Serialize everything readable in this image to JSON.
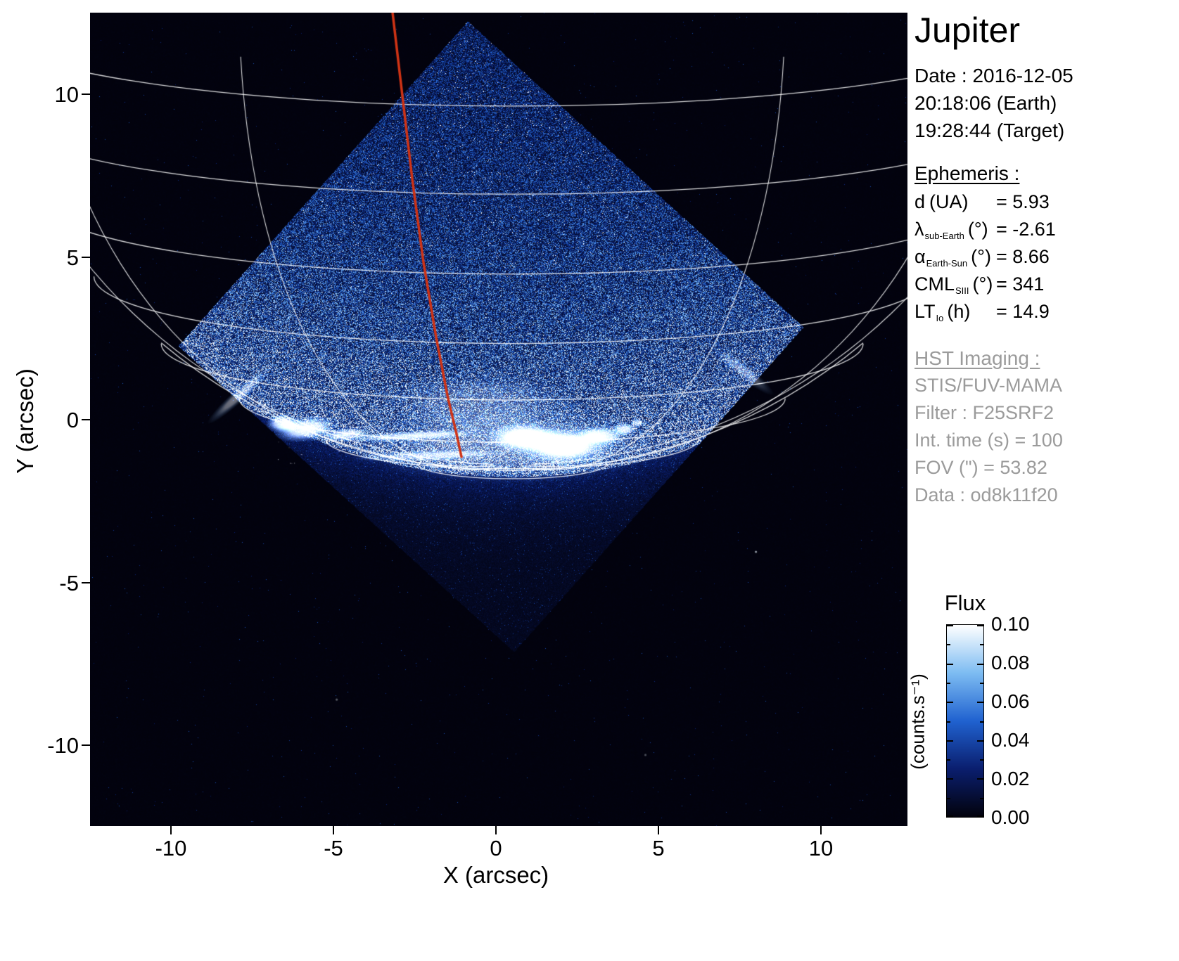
{
  "title": "Jupiter",
  "info_panel": {
    "date": "Date : 2016-12-05",
    "time_earth": "20:18:06 (Earth)",
    "time_target": "19:28:44 (Target)",
    "ephemeris_heading": "Ephemeris :",
    "ephemeris_rows": [
      {
        "sym": "d",
        "sub": "",
        "unit": "(UA)",
        "value": "= 5.93"
      },
      {
        "sym": "λ",
        "sub": "sub-Earth",
        "unit": "(°)",
        "value": "= -2.61"
      },
      {
        "sym": "α",
        "sub": "Earth-Sun",
        "unit": "(°)",
        "value": "= 8.66"
      },
      {
        "sym": "CML",
        "sub": "SIII",
        "unit": "(°)",
        "value": "= 341"
      },
      {
        "sym": "LT",
        "sub": "Io",
        "unit": "(h)",
        "value": "= 14.9"
      }
    ],
    "hst_heading": "HST Imaging :",
    "hst_rows": [
      "STIS/FUV-MAMA",
      "Filter : F25SRF2",
      "Int. time (s) = 100",
      "FOV (\") = 53.82",
      "Data : od8k11f20"
    ]
  },
  "colorbar": {
    "title": "Flux",
    "unit": "(counts.s⁻¹)",
    "tick_labels": [
      "0.10",
      "0.08",
      "0.06",
      "0.04",
      "0.02",
      "0.00"
    ]
  },
  "chart_data": {
    "type": "heatmap",
    "title": "Jupiter",
    "xlabel": "X (arcsec)",
    "ylabel": "Y (arcsec)",
    "xlim": [
      -12.5,
      12.7
    ],
    "ylim": [
      -12.6,
      12.5
    ],
    "xticks": [
      -10,
      -5,
      0,
      5,
      10
    ],
    "yticks": [
      10,
      5,
      0,
      -5,
      -10
    ],
    "xtick_labels": [
      "-10",
      "-5",
      "0",
      "5",
      "10"
    ],
    "ytick_labels": [
      "10",
      "5",
      "0",
      "-5",
      "-10"
    ],
    "flux_range": [
      0.0,
      0.1
    ],
    "flux_ticks": [
      0.0,
      0.02,
      0.04,
      0.06,
      0.08,
      0.1
    ],
    "observation": {
      "target": "Jupiter",
      "date": "2016-12-05",
      "time_earth": "20:18:06",
      "time_target": "19:28:44",
      "d_UA": 5.93,
      "lambda_subEarth_deg": -2.61,
      "alpha_EarthSun_deg": 8.66,
      "CML_SIII_deg": 341,
      "LT_Io_h": 14.9,
      "instrument": "STIS/FUV-MAMA",
      "filter": "F25SRF2",
      "int_time_s": 100,
      "FOV_arcsec": 53.82,
      "dataset": "od8k11f20"
    },
    "detector_diamond": [
      [
        -0.87,
        12.25
      ],
      [
        9.46,
        2.85
      ],
      [
        0.55,
        -7.13
      ],
      [
        -9.78,
        2.27
      ]
    ],
    "planet": {
      "cx": 0.5,
      "cy": 15.2,
      "radius": 16.8,
      "tilt": 0.16
    },
    "graticule_lat_deg": [
      -80,
      -70,
      -60,
      -50,
      -40,
      -30,
      -20,
      -10
    ],
    "graticule_lon_deg": [
      -90,
      -60,
      -30,
      30,
      60,
      90
    ],
    "aurora_blobs": [
      [
        -6.55,
        -0.12,
        0.55,
        0.3,
        0.95,
        0
      ],
      [
        -5.85,
        -0.28,
        1.0,
        0.4,
        1.0,
        -8
      ],
      [
        -4.6,
        -0.45,
        0.85,
        0.22,
        0.8,
        -5
      ],
      [
        -2.6,
        -0.5,
        2.3,
        0.16,
        0.75,
        -3
      ],
      [
        -2.0,
        -1.1,
        2.5,
        0.17,
        0.6,
        -2
      ],
      [
        0.9,
        -0.55,
        1.25,
        0.5,
        1.0,
        0
      ],
      [
        2.1,
        -0.8,
        1.55,
        0.62,
        1.0,
        0
      ],
      [
        3.2,
        -0.5,
        0.8,
        0.35,
        0.9,
        0
      ],
      [
        3.95,
        -0.3,
        0.4,
        0.22,
        0.85,
        0
      ],
      [
        4.35,
        -0.1,
        0.22,
        0.15,
        0.7,
        0
      ],
      [
        -7.9,
        0.75,
        1.3,
        0.2,
        0.5,
        -42
      ],
      [
        7.6,
        1.5,
        1.2,
        0.22,
        0.4,
        38
      ],
      [
        0.3,
        -0.75,
        4.8,
        1.25,
        0.3,
        0
      ],
      [
        -0.5,
        0.5,
        3.2,
        1.0,
        0.22,
        0
      ]
    ],
    "footprint_path": [
      [
        -3.18,
        12.5
      ],
      [
        -2.9,
        10.13
      ],
      [
        -2.58,
        7.43
      ],
      [
        -2.23,
        4.84
      ],
      [
        -1.84,
        2.53
      ],
      [
        -1.49,
        0.73
      ],
      [
        -1.21,
        -0.45
      ],
      [
        -1.06,
        -1.14
      ]
    ],
    "faint_points": [
      [
        8.0,
        -4.06,
        0.6
      ],
      [
        -4.9,
        -8.6,
        0.35
      ],
      [
        4.6,
        -10.3,
        0.3
      ]
    ],
    "colormap_stops": [
      [
        0,
        [
          2,
          2,
          12
        ]
      ],
      [
        0.25,
        [
          10,
          30,
          110
        ]
      ],
      [
        0.5,
        [
          32,
          98,
          208
        ]
      ],
      [
        0.75,
        [
          125,
          188,
          242
        ]
      ],
      [
        1,
        [
          255,
          255,
          255
        ]
      ]
    ]
  }
}
